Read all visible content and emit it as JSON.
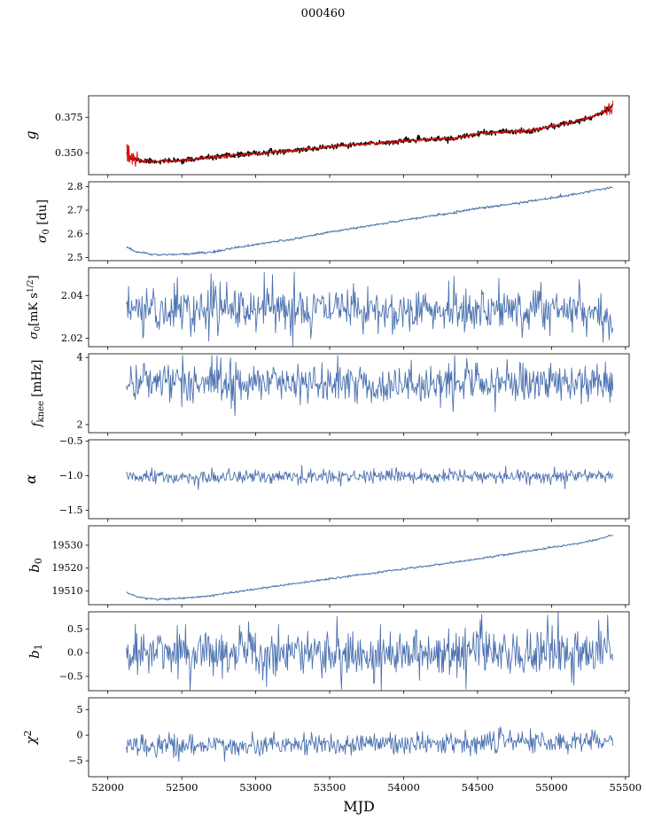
{
  "title": "000460",
  "chart_data": {
    "type": "line",
    "title": "000460",
    "xlabel": "MJD",
    "xlim": [
      51870,
      55525
    ],
    "xticks": [
      52000,
      52500,
      53000,
      53500,
      54000,
      54500,
      55000,
      55500
    ],
    "xtick_labels": [
      "52000",
      "52500",
      "53000",
      "53500",
      "54000",
      "54500",
      "55000",
      "55500"
    ],
    "line_color": "#4C72B0",
    "overlay_color": "#dd1111",
    "grid": false,
    "legend": "none",
    "panels": [
      {
        "name": "g",
        "ylabel_parts": [
          [
            "g",
            "i"
          ]
        ],
        "ylabel_x": 40,
        "ylabel_size": 16,
        "ylim": [
          0.335,
          0.39
        ],
        "yticks": [
          {
            "v": 0.35,
            "label": "0.350"
          },
          {
            "v": 0.375,
            "label": "0.375"
          }
        ],
        "series": [
          {
            "name": "g-base",
            "color": "#000000",
            "width": 1.4,
            "seed": 11,
            "n": 900,
            "x_range": [
              52125,
              55415
            ],
            "noise": [
              [
                52125,
                55415,
                0.0009
              ]
            ],
            "trend": [
              [
                52125,
                0.3512
              ],
              [
                52160,
                0.3462
              ],
              [
                52220,
                0.3448
              ],
              [
                52300,
                0.3443
              ],
              [
                52400,
                0.3444
              ],
              [
                52500,
                0.345
              ],
              [
                52700,
                0.347
              ],
              [
                52900,
                0.3489
              ],
              [
                53100,
                0.3506
              ],
              [
                53300,
                0.3523
              ],
              [
                53500,
                0.3544
              ],
              [
                53700,
                0.3562
              ],
              [
                53900,
                0.3576
              ],
              [
                54050,
                0.359
              ],
              [
                54200,
                0.3598
              ],
              [
                54350,
                0.3602
              ],
              [
                54500,
                0.3635
              ],
              [
                54700,
                0.365
              ],
              [
                54850,
                0.3655
              ],
              [
                55000,
                0.3686
              ],
              [
                55150,
                0.3718
              ],
              [
                55250,
                0.3745
              ],
              [
                55350,
                0.3788
              ],
              [
                55415,
                0.3838
              ]
            ]
          },
          {
            "name": "g-overlay",
            "color": "#dd1111",
            "width": 1.0,
            "seed": 12,
            "n": 900,
            "x_range": [
              52125,
              55415
            ],
            "noise": [
              [
                52125,
                52200,
                0.003
              ],
              [
                52200,
                55350,
                0.0006
              ],
              [
                55350,
                55415,
                0.0022
              ]
            ],
            "spikes": [
              [
                52128,
                0.356
              ],
              [
                52132,
                0.3445
              ],
              [
                52136,
                0.3555
              ],
              [
                52140,
                0.3442
              ],
              [
                52144,
                0.355
              ],
              [
                55392,
                0.3768
              ],
              [
                55400,
                0.3802
              ],
              [
                55408,
                0.3775
              ]
            ],
            "trend": [
              [
                52125,
                0.3512
              ],
              [
                52160,
                0.3462
              ],
              [
                52220,
                0.3448
              ],
              [
                52300,
                0.3443
              ],
              [
                52400,
                0.3444
              ],
              [
                52500,
                0.345
              ],
              [
                52700,
                0.347
              ],
              [
                52900,
                0.3489
              ],
              [
                53100,
                0.3506
              ],
              [
                53300,
                0.3523
              ],
              [
                53500,
                0.3544
              ],
              [
                53700,
                0.3562
              ],
              [
                53900,
                0.3576
              ],
              [
                54050,
                0.359
              ],
              [
                54200,
                0.3598
              ],
              [
                54350,
                0.3602
              ],
              [
                54500,
                0.3635
              ],
              [
                54700,
                0.365
              ],
              [
                54850,
                0.3655
              ],
              [
                55000,
                0.3686
              ],
              [
                55150,
                0.3718
              ],
              [
                55250,
                0.3745
              ],
              [
                55350,
                0.3788
              ],
              [
                55415,
                0.3838
              ]
            ]
          }
        ]
      },
      {
        "name": "sigma0_du",
        "ylabel_parts": [
          [
            "σ",
            "i"
          ],
          [
            "0",
            "sub"
          ],
          [
            " [du]",
            ""
          ]
        ],
        "ylabel_x": 52,
        "ylabel_size": 14,
        "ylim": [
          2.487,
          2.82
        ],
        "yticks": [
          {
            "v": 2.5,
            "label": "2.5"
          },
          {
            "v": 2.6,
            "label": "2.6"
          },
          {
            "v": 2.7,
            "label": "2.7"
          },
          {
            "v": 2.8,
            "label": "2.8"
          }
        ],
        "series": [
          {
            "name": "sigma0-du",
            "color": "#4C72B0",
            "width": 1.0,
            "seed": 21,
            "n": 800,
            "x_range": [
              52125,
              55415
            ],
            "noise": [
              [
                52125,
                55415,
                0.0025
              ]
            ],
            "trend": [
              [
                52125,
                2.546
              ],
              [
                52200,
                2.522
              ],
              [
                52330,
                2.512
              ],
              [
                52500,
                2.514
              ],
              [
                52700,
                2.523
              ],
              [
                53000,
                2.556
              ],
              [
                53250,
                2.578
              ],
              [
                53500,
                2.608
              ],
              [
                53750,
                2.632
              ],
              [
                54000,
                2.658
              ],
              [
                54250,
                2.681
              ],
              [
                54500,
                2.708
              ],
              [
                54750,
                2.728
              ],
              [
                55000,
                2.752
              ],
              [
                55200,
                2.772
              ],
              [
                55415,
                2.798
              ]
            ]
          }
        ]
      },
      {
        "name": "sigma0_mk",
        "ylabel_parts": [
          [
            "σ",
            "i"
          ],
          [
            "0",
            "sub"
          ],
          [
            "[mK s",
            ""
          ],
          [
            "1/2",
            "sup"
          ],
          [
            "]",
            ""
          ]
        ],
        "ylabel_x": 42,
        "ylabel_size": 13,
        "ylim": [
          2.016,
          2.053
        ],
        "yticks": [
          {
            "v": 2.02,
            "label": "2.02"
          },
          {
            "v": 2.04,
            "label": "2.04"
          }
        ],
        "series": [
          {
            "name": "sigma0-mk",
            "color": "#4C72B0",
            "width": 0.9,
            "seed": 31,
            "n": 650,
            "x_range": [
              52125,
              55415
            ],
            "noise": [
              [
                52125,
                55415,
                0.0052
              ]
            ],
            "spikes": [
              [
                52700,
                2.0502
              ],
              [
                53060,
                2.0508
              ],
              [
                53260,
                2.051
              ],
              [
                54340,
                2.049
              ],
              [
                52560,
                2.0208
              ],
              [
                54800,
                2.0202
              ],
              [
                55390,
                2.0192
              ],
              [
                55410,
                2.0225
              ]
            ],
            "trend": [
              [
                52125,
                2.0335
              ],
              [
                55250,
                2.0335
              ],
              [
                55330,
                2.0305
              ],
              [
                55415,
                2.025
              ]
            ]
          }
        ]
      },
      {
        "name": "f_knee",
        "ylabel_parts": [
          [
            "f",
            "i"
          ],
          [
            "knee",
            "sub"
          ],
          [
            " [mHz]",
            ""
          ]
        ],
        "ylabel_x": 46,
        "ylabel_size": 13.5,
        "ylim": [
          1.76,
          4.11
        ],
        "yticks": [
          {
            "v": 2,
            "label": "2"
          },
          {
            "v": 4,
            "label": "4"
          }
        ],
        "series": [
          {
            "name": "f-knee",
            "color": "#4C72B0",
            "width": 0.9,
            "seed": 41,
            "n": 650,
            "x_range": [
              52125,
              55415
            ],
            "noise": [
              [
                52125,
                55415,
                0.3
              ]
            ],
            "clamp": [
              2.02,
              4.06
            ],
            "trend": [
              [
                52125,
                3.32
              ],
              [
                53000,
                3.27
              ],
              [
                53800,
                3.2
              ],
              [
                54600,
                3.25
              ],
              [
                55415,
                3.23
              ]
            ]
          }
        ]
      },
      {
        "name": "alpha",
        "ylabel_parts": [
          [
            "α",
            "i"
          ]
        ],
        "ylabel_x": 40,
        "ylabel_size": 16,
        "ylim": [
          -1.62,
          -0.48
        ],
        "yticks": [
          {
            "v": -0.5,
            "label": "−0.5"
          },
          {
            "v": -1,
            "label": "−1.0"
          },
          {
            "v": -1.5,
            "label": "−1.5"
          }
        ],
        "series": [
          {
            "name": "alpha",
            "color": "#4C72B0",
            "width": 0.9,
            "seed": 51,
            "n": 650,
            "x_range": [
              52125,
              55415
            ],
            "noise": [
              [
                52125,
                55415,
                0.048
              ]
            ],
            "spikes": [
              [
                53310,
                -0.85
              ],
              [
                54690,
                -0.86
              ],
              [
                52610,
                -1.2
              ],
              [
                55090,
                -1.19
              ],
              [
                53950,
                -0.88
              ]
            ],
            "trend": [
              [
                52125,
                -1.025
              ],
              [
                55415,
                -1.01
              ]
            ]
          }
        ]
      },
      {
        "name": "b0",
        "ylabel_parts": [
          [
            "b",
            "i"
          ],
          [
            "0",
            "sub"
          ]
        ],
        "ylabel_x": 44,
        "ylabel_size": 15,
        "ylim": [
          19504,
          19538.5
        ],
        "yticks": [
          {
            "v": 19510,
            "label": "19510"
          },
          {
            "v": 19520,
            "label": "19520"
          },
          {
            "v": 19530,
            "label": "19530"
          }
        ],
        "series": [
          {
            "name": "b0",
            "color": "#4C72B0",
            "width": 1.0,
            "seed": 61,
            "n": 800,
            "x_range": [
              52125,
              55415
            ],
            "noise": [
              [
                52125,
                55415,
                0.22
              ]
            ],
            "trend": [
              [
                52125,
                19509.5
              ],
              [
                52200,
                19507.3
              ],
              [
                52330,
                19506.4
              ],
              [
                52500,
                19506.8
              ],
              [
                52700,
                19508
              ],
              [
                53000,
                19510.8
              ],
              [
                53300,
                19513.5
              ],
              [
                53600,
                19516.2
              ],
              [
                53900,
                19518.8
              ],
              [
                54200,
                19521.2
              ],
              [
                54500,
                19524
              ],
              [
                54800,
                19527
              ],
              [
                55100,
                19530
              ],
              [
                55300,
                19532.3
              ],
              [
                55415,
                19534.5
              ]
            ]
          }
        ]
      },
      {
        "name": "b1",
        "ylabel_parts": [
          [
            "b",
            "i"
          ],
          [
            "1",
            "sub"
          ]
        ],
        "ylabel_x": 44,
        "ylabel_size": 15,
        "ylim": [
          -0.8,
          0.86
        ],
        "yticks": [
          {
            "v": 0.5,
            "label": "0.5"
          },
          {
            "v": 0,
            "label": "0.0"
          },
          {
            "v": -0.5,
            "label": "−0.5"
          }
        ],
        "series": [
          {
            "name": "b1",
            "color": "#4C72B0",
            "width": 0.9,
            "seed": 71,
            "n": 650,
            "x_range": [
              52125,
              55415
            ],
            "noise": [
              [
                52125,
                55415,
                0.26
              ]
            ],
            "trend": [
              [
                52125,
                0
              ],
              [
                55415,
                0
              ]
            ]
          }
        ]
      },
      {
        "name": "chi2",
        "ylabel_parts": [
          [
            "χ",
            "i"
          ],
          [
            "2",
            "sup"
          ]
        ],
        "ylabel_x": 40,
        "ylabel_size": 15,
        "ylim": [
          -8.1,
          7.3
        ],
        "yticks": [
          {
            "v": 5,
            "label": "5"
          },
          {
            "v": 0,
            "label": "0"
          },
          {
            "v": -5,
            "label": "−5"
          }
        ],
        "series": [
          {
            "name": "chi2",
            "color": "#4C72B0",
            "width": 0.9,
            "seed": 81,
            "n": 650,
            "x_range": [
              52125,
              55415
            ],
            "noise": [
              [
                52125,
                55415,
                1.05
              ]
            ],
            "clamp": [
              -5.4,
              1.6
            ],
            "trend": [
              [
                52125,
                -2
              ],
              [
                52800,
                -2
              ],
              [
                53500,
                -1.7
              ],
              [
                54300,
                -1.4
              ],
              [
                55000,
                -1.2
              ],
              [
                55415,
                -0.9
              ]
            ]
          }
        ]
      }
    ]
  }
}
